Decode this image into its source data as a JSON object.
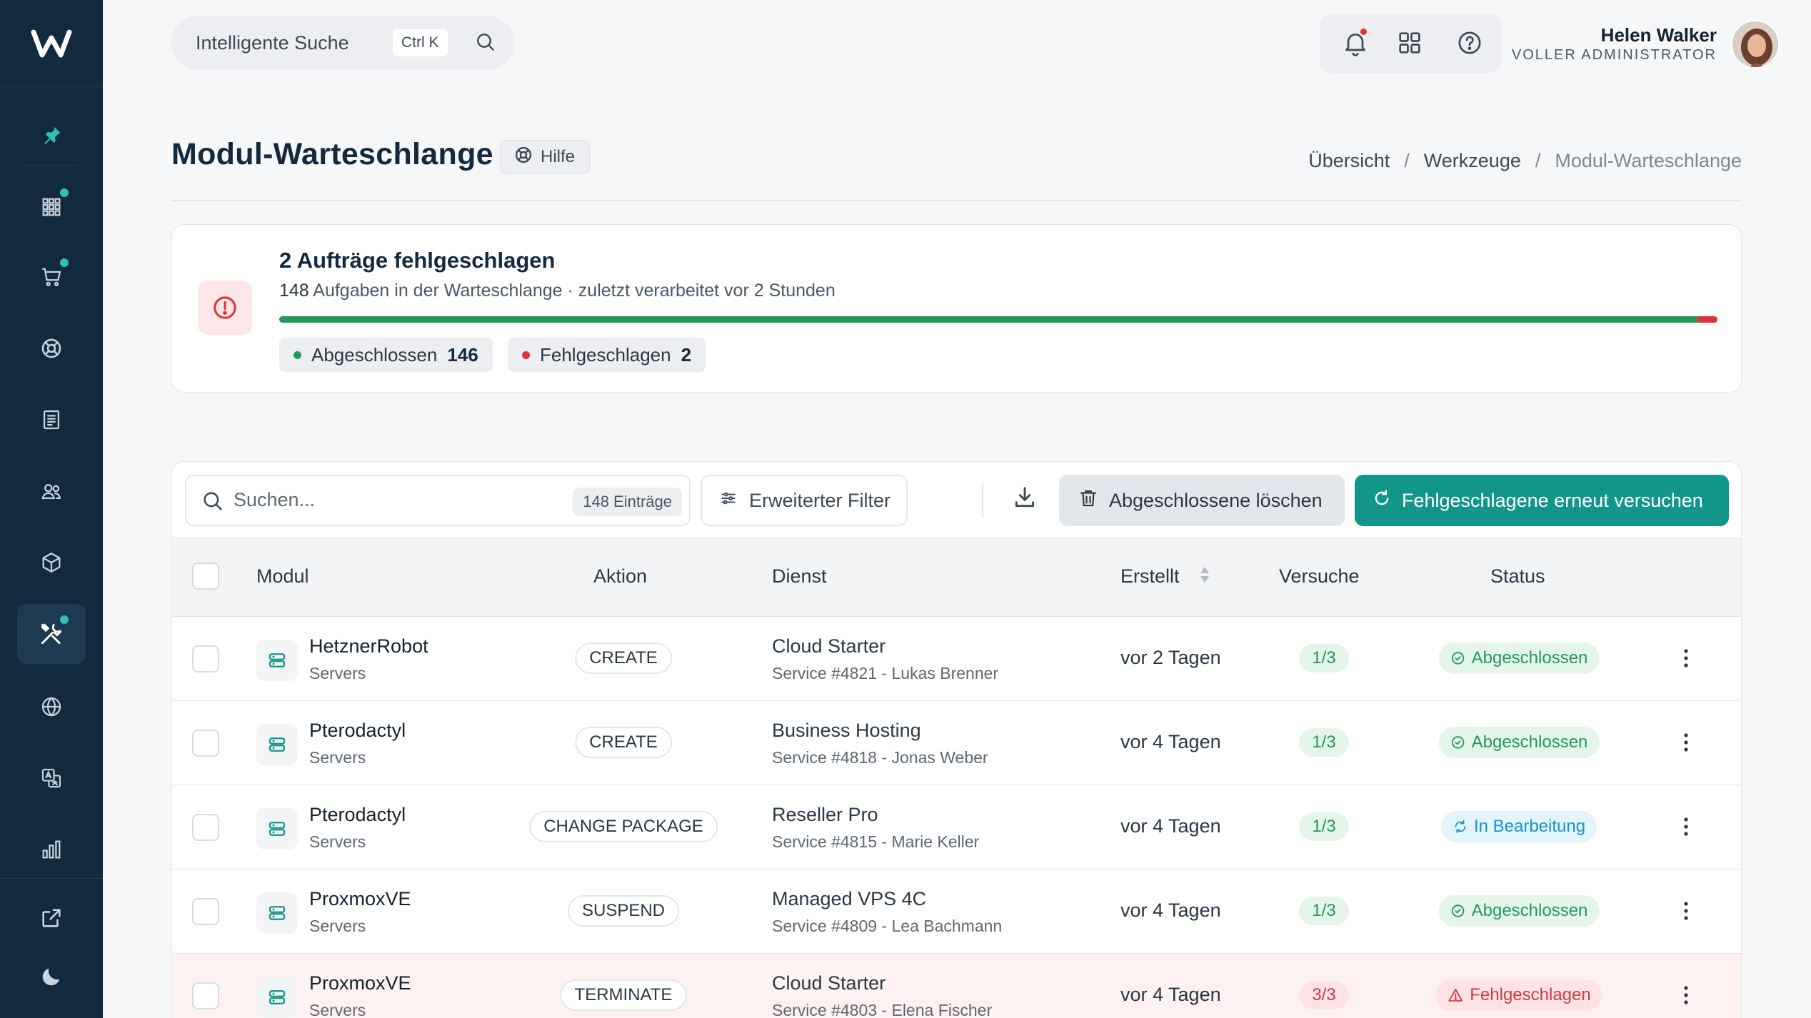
{
  "colors": {
    "sidebar_bg": "#13293d",
    "accent": "#12968a",
    "success": "#219a5b",
    "danger": "#e0313b",
    "processing": "#1d93c8"
  },
  "sidebar": {
    "logo_icon": "w-logo-icon",
    "items": [
      {
        "name": "pin-icon",
        "badge": false,
        "active": false
      },
      {
        "name": "apps-grid-icon",
        "badge": true,
        "active": false
      },
      {
        "name": "cart-icon",
        "badge": true,
        "active": false
      },
      {
        "name": "support-lifebuoy-icon",
        "badge": false,
        "active": false
      },
      {
        "name": "invoice-icon",
        "badge": false,
        "active": false
      },
      {
        "name": "users-icon",
        "badge": false,
        "active": false
      },
      {
        "name": "package-box-icon",
        "badge": false,
        "active": false
      },
      {
        "name": "tools-icon",
        "badge": true,
        "active": true
      },
      {
        "name": "globe-icon",
        "badge": false,
        "active": false
      },
      {
        "name": "translate-icon",
        "badge": false,
        "active": false
      },
      {
        "name": "reports-chart-icon",
        "badge": false,
        "active": false
      }
    ],
    "bottom_items": [
      {
        "name": "external-link-icon"
      },
      {
        "name": "dark-mode-moon-icon"
      }
    ]
  },
  "topbar": {
    "search_label": "Intelligente Suche",
    "search_shortcut": "Ctrl K",
    "user_name": "Helen Walker",
    "user_role": "VOLLER ADMINISTRATOR"
  },
  "page": {
    "title": "Modul-Warteschlange",
    "help_label": "Hilfe",
    "breadcrumb": [
      "Übersicht",
      "Werkzeuge",
      "Modul-Warteschlange"
    ]
  },
  "alert": {
    "title": "2 Aufträge fehlgeschlagen",
    "count": "148",
    "subtitle_rest": " Aufgaben in der Warteschlange · zuletzt verarbeitet vor 2 Stunden",
    "completed_fraction": 0.986,
    "chip_completed_label": "Abgeschlossen",
    "chip_completed_value": "146",
    "chip_failed_label": "Fehlgeschlagen",
    "chip_failed_value": "2"
  },
  "toolbar": {
    "search_placeholder": "Suchen...",
    "entries_count": "148 Einträge",
    "filter_label": "Erweiterter Filter",
    "delete_label": "Abgeschlossene löschen",
    "retry_label": "Fehlgeschlagene erneut versuchen"
  },
  "table": {
    "headers": {
      "module": "Modul",
      "action": "Aktion",
      "service": "Dienst",
      "created": "Erstellt",
      "attempts": "Versuche",
      "status": "Status"
    },
    "rows": [
      {
        "module": "HetznerRobot",
        "type": "Servers",
        "action": "CREATE",
        "service": "Cloud Starter",
        "service_sub": "Service #4821 - Lukas Brenner",
        "created": "vor 2 Tagen",
        "attempts": "1/3",
        "status": "Abgeschlossen",
        "state": "done"
      },
      {
        "module": "Pterodactyl",
        "type": "Servers",
        "action": "CREATE",
        "service": "Business Hosting",
        "service_sub": "Service #4818 - Jonas Weber",
        "created": "vor 4 Tagen",
        "attempts": "1/3",
        "status": "Abgeschlossen",
        "state": "done"
      },
      {
        "module": "Pterodactyl",
        "type": "Servers",
        "action": "CHANGE PACKAGE",
        "service": "Reseller Pro",
        "service_sub": "Service #4815 - Marie Keller",
        "created": "vor 4 Tagen",
        "attempts": "1/3",
        "status": "In Bearbeitung",
        "state": "proc"
      },
      {
        "module": "ProxmoxVE",
        "type": "Servers",
        "action": "SUSPEND",
        "service": "Managed VPS 4C",
        "service_sub": "Service #4809 - Lea Bachmann",
        "created": "vor 4 Tagen",
        "attempts": "1/3",
        "status": "Abgeschlossen",
        "state": "done"
      },
      {
        "module": "ProxmoxVE",
        "type": "Servers",
        "action": "TERMINATE",
        "service": "Cloud Starter",
        "service_sub": "Service #4803 - Elena Fischer",
        "created": "vor 4 Tagen",
        "attempts": "3/3",
        "status": "Fehlgeschlagen",
        "state": "fail"
      }
    ]
  }
}
